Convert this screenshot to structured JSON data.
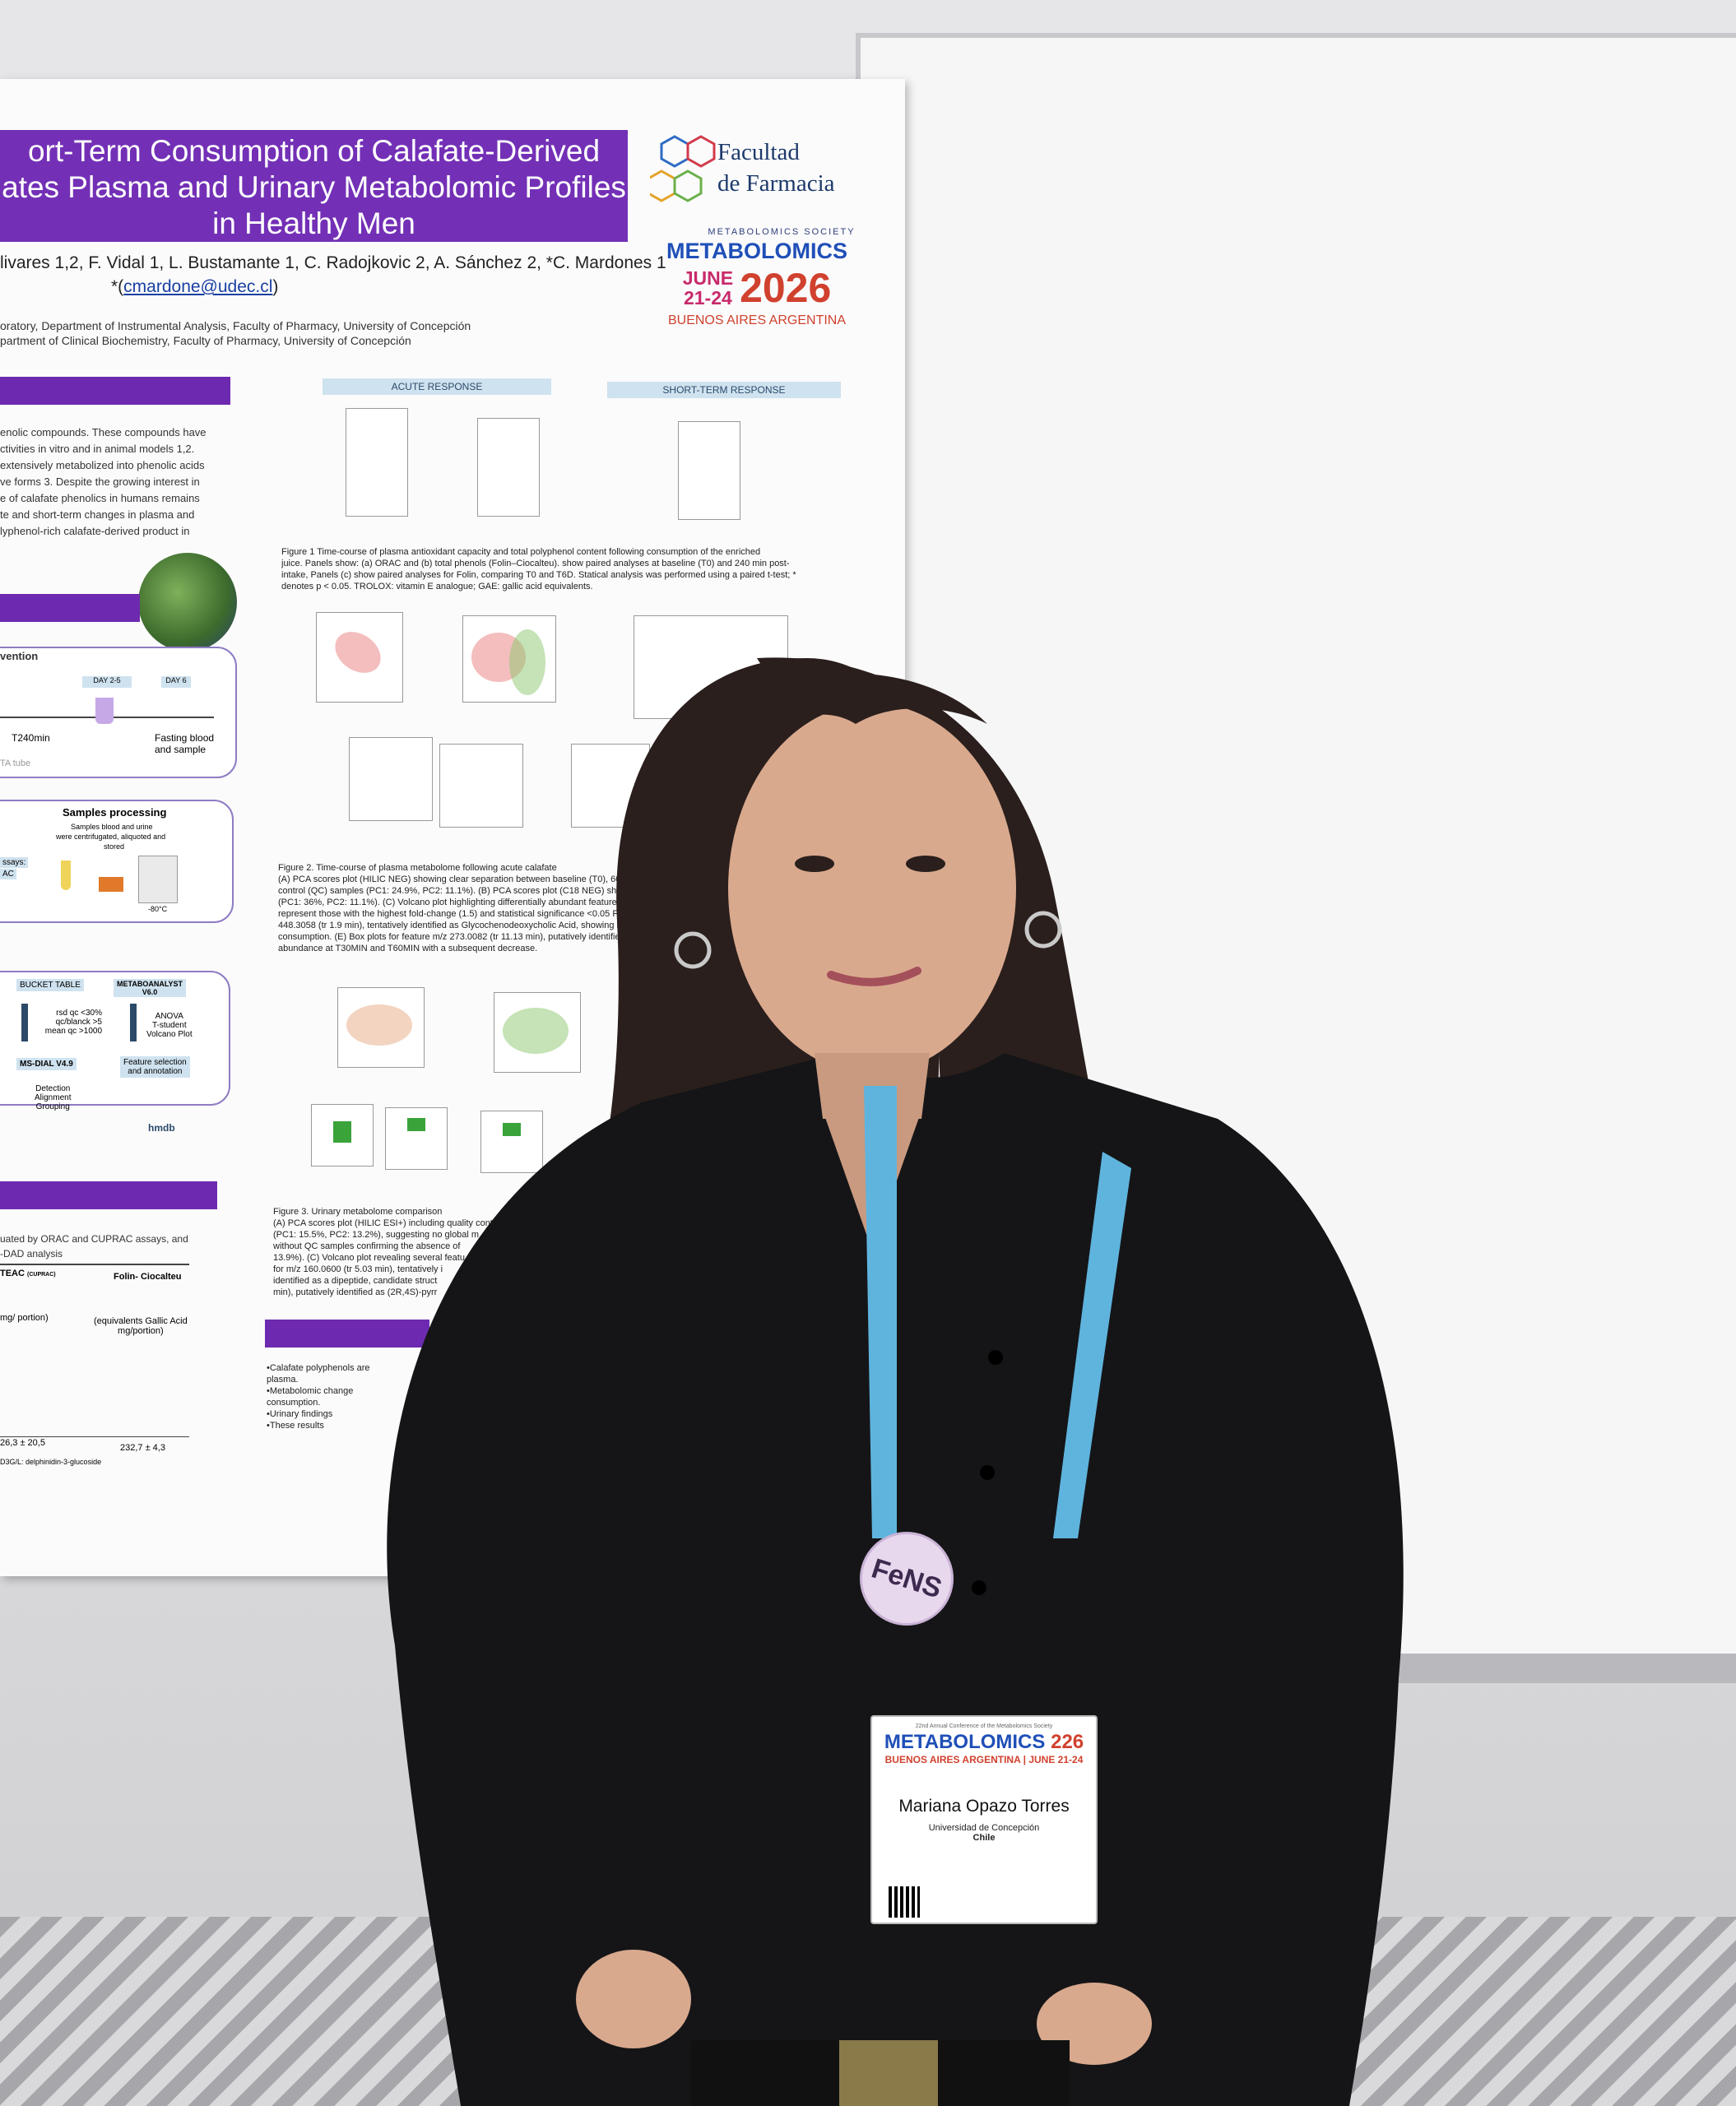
{
  "poster": {
    "title_lines": [
      "ort-Term Consumption of Calafate-Derived",
      "ates Plasma and Urinary Metabolomic Profiles",
      "in Healthy Men"
    ],
    "authors": "livares 1,2, F. Vidal 1, L. Bustamante 1, C. Radojkovic 2, A. Sánchez 2, *C. Mardones 1",
    "email_prefix": "*(",
    "email": "cmardone@udec.cl",
    "email_suffix": ")",
    "affiliations": [
      "oratory, Department of Instrumental Analysis, Faculty of Pharmacy, University of Concepción",
      "partment of Clinical Biochemistry, Faculty of Pharmacy, University of Concepción"
    ],
    "institution_logo": {
      "line1": "Facultad",
      "line2": "de Farmacia"
    },
    "conference_logo": {
      "society": "METABOLOMICS SOCIETY",
      "name": "METABOLOMICS",
      "dates_line1": "JUNE",
      "dates_line2": "21-24",
      "year": "2026",
      "city": "BUENOS AIRES ARGENTINA"
    },
    "intro_text": [
      "enolic compounds. These compounds have",
      "ctivities in vitro and in animal models 1,2.",
      "",
      "extensively metabolized into phenolic acids",
      "ve forms 3. Despite the growing interest in",
      "e of calafate phenolics in humans remains",
      "te and short-term changes in plasma and",
      "lyphenol-rich calafate-derived product in"
    ],
    "acute_response": "ACUTE RESPONSE",
    "short_term_response": "SHORT-TERM RESPONSE",
    "fig1_caption": [
      "Figure 1 Time-course of plasma antioxidant capacity and total polyphenol content following consumption of the enriched",
      "juice. Panels show: (a) ORAC and (b) total phenols (Folin–Ciocalteu). show paired analyses at baseline (T0) and 240 min post-",
      "intake, Panels (c) show paired analyses for Folin, comparing T0 and T6D. Statical analysis was performed using a paired t-test; *",
      "denotes p < 0.05. TROLOX: vitamin E analogue; GAE: gallic acid equivalents."
    ],
    "fig2_caption": [
      "Figure 2. Time-course of plasma metabolome following acute calafate",
      "(A) PCA scores plot (HILIC NEG) showing clear separation between baseline (T0), 60 min post-consumption (T60MIN",
      "control (QC) samples (PC1: 24.9%, PC2: 11.1%). (B) PCA scores plot (C18 NEG) showing partial overlap between T",
      "(PC1: 36%, PC2: 11.1%). (C) Volcano plot highlighting differentially abundant features between T0 and T60MIN",
      "represent those with the highest fold-change (1.5) and statistical significance <0.05 FDR adjusted. (D) Box plots",
      "448.3058 (tr 1.9 min), tentatively identified as Glycochenodeoxycholic Acid, showing increased abundance at 1",
      "consumption. (E) Box plots for feature m/z 273.0082 (tr 11.13 min), putatively identified as sulfated ferulic acid,",
      "abundance at T30MIN and T60MIN with a subsequent decrease."
    ],
    "fig3_caption": [
      "Figure 3. Urinary metabolome comparison",
      "(A) PCA scores plot (HILIC ESI+) including quality contr",
      "(PC1: 15.5%, PC2: 13.2%), suggesting no global m",
      "without QC samples confirming the absence of",
      "13.9%). (C) Volcano plot revealing several featu",
      "for m/z 160.0600 (tr 5.03 min), tentatively i",
      "identified as a dipeptide, candidate struct",
      "min), putatively identified as (2R,4S)-pyrr"
    ],
    "intervention": {
      "title": "vention",
      "day25": "DAY 2-5",
      "day6": "DAY 6",
      "t240": "T240min",
      "fasting": "Fasting blood",
      "fasting2": "and sample",
      "tube": "TA tube"
    },
    "samples": {
      "title": "Samples processing",
      "text1": "Samples blood and urine",
      "text2": "were centrifugated, aliquoted and",
      "text3": "stored",
      "assays": "ssays:",
      "ac": "AC",
      "temp": "-80°C"
    },
    "workflow": {
      "bucket": "BUCKET TABLE",
      "metaboanalyst": "METABOANALYST",
      "metaboanalyst_v": "V6.0",
      "filters1": "rsd qc <30%",
      "filters2": "qc/blanck >5",
      "filters3": "mean qc >1000",
      "anova": "ANOVA",
      "tstudent": "T-student",
      "volcano": "Volcano Plot",
      "msdial": "MS-DIAL V4.9",
      "feature1": "Feature selection",
      "feature2": "and annotation",
      "detection": "Detection",
      "alignment": "Alignment",
      "grouping": "Grouping",
      "hmdb": "hmdb"
    },
    "methods_text": [
      "uated by ORAC and CUPRAC assays, and",
      "-DAD analysis"
    ],
    "table": {
      "col1": "TEAC",
      "col1_sub": "(CUPRAC)",
      "col2": "Folin- Ciocalteu",
      "unit1": "mg/ portion)",
      "unit2": "(equivalents Gallic Acid",
      "unit2b": "mg/portion)",
      "val1": "26,3 ± 20,5",
      "val2": "232,7 ± 4,3",
      "footnote": "D3G/L: delphinidin-3-glucoside"
    },
    "conclusions": [
      "•Calafate polyphenols are",
      "plasma.",
      "•Metabolomic change",
      "consumption.",
      "•Urinary findings",
      "•These results"
    ]
  },
  "badge": {
    "small_text": "22nd Annual Conference of the Metabolomics Society",
    "conference": "METABOLOMICS",
    "year_digit_a": "2",
    "year_digit_b": "26",
    "location": "BUENOS AIRES ARGENTINA | JUNE 21-24",
    "name": "Mariana Opazo Torres",
    "university": "Universidad de Concepción",
    "country": "Chile"
  },
  "lanyard_text": "METABOLOMICS 2026",
  "pin_text": "FeNS",
  "colors": {
    "poster_purple": "#7330b6",
    "lanyard_blue": "#5fb4de",
    "shirt": "#151517",
    "accent_red": "#d0412e"
  }
}
